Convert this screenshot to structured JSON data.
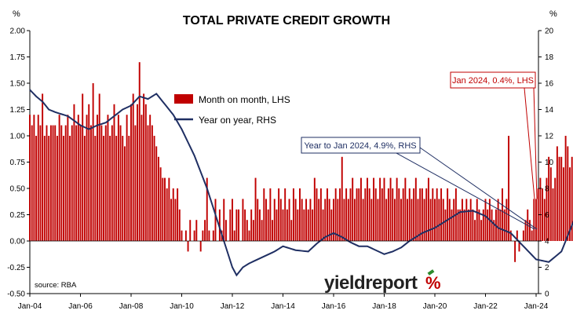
{
  "chart_data": {
    "type": "bar+line",
    "title": "TOTAL PRIVATE CREDIT GROWTH",
    "left_unit": "%",
    "right_unit": "%",
    "y_left": {
      "min": -0.5,
      "max": 2.0,
      "step": 0.25
    },
    "y_right": {
      "min": 0,
      "max": 20,
      "step": 2
    },
    "y_left_ticks": [
      "2.00",
      "1.75",
      "1.50",
      "1.25",
      "1.00",
      "0.75",
      "0.50",
      "0.25",
      "0.00",
      "-0.25",
      "-0.50"
    ],
    "y_right_ticks": [
      "20",
      "18",
      "16",
      "14",
      "12",
      "10",
      "8",
      "6",
      "4",
      "2",
      "0"
    ],
    "x_start": "2004-01",
    "x_end": "2024-01",
    "x_tick_labels": [
      "Jan-04",
      "Jan-06",
      "Jan-08",
      "Jan-10",
      "Jan-12",
      "Jan-14",
      "Jan-16",
      "Jan-18",
      "Jan-20",
      "Jan-22",
      "Jan-24"
    ],
    "grid": false,
    "legend": {
      "placement": "center-top",
      "entries": [
        {
          "label": "Month on month, LHS",
          "color": "#c00000",
          "kind": "bar"
        },
        {
          "label": "Year on year, RHS",
          "color": "#1f2f63",
          "kind": "line"
        }
      ]
    },
    "annotations": [
      {
        "text": "Jan 2024, 0.4%, LHS",
        "color": "#c00000",
        "points_to": {
          "date": "2024-01",
          "value": 0.4,
          "axis": "left"
        }
      },
      {
        "text": "Year to Jan 2024, 4.9%, RHS",
        "color": "#1f2f63",
        "points_to": {
          "date": "2024-01",
          "value": 4.9,
          "axis": "right"
        }
      }
    ],
    "source": "source: RBA",
    "logo": {
      "text": "yieldreport",
      "symbol": "%"
    },
    "series": [
      {
        "name": "Month on month, LHS",
        "kind": "bar",
        "axis": "left",
        "color": "#c00000",
        "values": [
          1.2,
          1.1,
          1.2,
          1.0,
          1.2,
          1.1,
          1.4,
          1.0,
          1.1,
          1.0,
          1.1,
          1.1,
          1.1,
          1.0,
          1.2,
          1.1,
          1.0,
          1.1,
          1.2,
          1.0,
          1.1,
          1.3,
          1.1,
          1.2,
          1.1,
          1.4,
          1.0,
          1.2,
          1.3,
          1.1,
          1.5,
          1.0,
          1.2,
          1.4,
          1.1,
          1.0,
          1.1,
          1.2,
          1.0,
          1.1,
          1.3,
          1.0,
          1.2,
          1.1,
          1.0,
          0.9,
          1.2,
          1.0,
          1.3,
          1.4,
          1.1,
          1.3,
          1.7,
          1.2,
          1.4,
          1.3,
          1.1,
          1.2,
          1.1,
          1.0,
          0.9,
          0.8,
          0.7,
          0.6,
          0.6,
          0.5,
          0.6,
          0.4,
          0.5,
          0.4,
          0.5,
          0.3,
          0.1,
          0.0,
          0.1,
          -0.1,
          0.2,
          0.0,
          0.1,
          0.2,
          0.0,
          -0.1,
          0.1,
          0.2,
          0.6,
          0.1,
          0.0,
          0.1,
          0.4,
          0.0,
          0.3,
          0.1,
          0.4,
          0.2,
          0.0,
          0.3,
          0.4,
          0.1,
          0.3,
          0.3,
          0.0,
          0.4,
          0.3,
          0.2,
          0.1,
          0.3,
          0.2,
          0.6,
          0.4,
          0.3,
          0.2,
          0.5,
          0.4,
          0.3,
          0.5,
          0.2,
          0.4,
          0.3,
          0.5,
          0.4,
          0.3,
          0.5,
          0.3,
          0.4,
          0.2,
          0.5,
          0.4,
          0.3,
          0.5,
          0.4,
          0.3,
          0.4,
          0.3,
          0.4,
          0.3,
          0.6,
          0.5,
          0.4,
          0.5,
          0.3,
          0.4,
          0.5,
          0.4,
          0.3,
          0.4,
          0.5,
          0.4,
          0.5,
          0.8,
          0.4,
          0.5,
          0.4,
          0.5,
          0.6,
          0.4,
          0.5,
          0.5,
          0.6,
          0.4,
          0.5,
          0.6,
          0.5,
          0.4,
          0.6,
          0.5,
          0.4,
          0.6,
          0.5,
          0.6,
          0.4,
          0.5,
          0.6,
          0.5,
          0.4,
          0.6,
          0.5,
          0.4,
          0.5,
          0.6,
          0.4,
          0.5,
          0.4,
          0.5,
          0.6,
          0.4,
          0.5,
          0.5,
          0.4,
          0.5,
          0.6,
          0.4,
          0.5,
          0.4,
          0.5,
          0.4,
          0.5,
          0.4,
          0.3,
          0.5,
          0.4,
          0.3,
          0.4,
          0.5,
          0.3,
          0.3,
          0.4,
          0.3,
          0.4,
          0.3,
          0.4,
          0.3,
          0.2,
          0.4,
          0.3,
          0.2,
          0.3,
          0.4,
          0.3,
          0.4,
          0.3,
          0.2,
          0.3,
          0.4,
          0.3,
          0.5,
          0.3,
          0.4,
          1.0,
          0.1,
          0.0,
          -0.2,
          0.1,
          -0.1,
          0.0,
          0.1,
          0.2,
          0.3,
          0.2,
          0.1,
          0.4,
          0.4,
          0.5,
          0.6,
          0.5,
          0.4,
          0.6,
          0.8,
          0.7,
          0.5,
          0.6,
          0.9,
          0.8,
          0.8,
          0.7,
          1.0,
          0.9,
          0.7,
          0.8,
          0.9,
          0.7,
          0.8,
          0.6,
          0.7,
          0.5,
          0.5,
          0.6,
          0.4,
          0.5,
          0.4,
          0.6,
          0.4,
          0.5,
          0.4,
          0.3,
          0.4,
          0.5,
          0.4,
          0.3,
          0.5,
          0.4,
          0.4,
          0.4,
          0.4,
          0.4,
          0.5,
          0.4,
          0.4,
          0.4,
          0.4
        ]
      },
      {
        "name": "Year on year, RHS",
        "kind": "line",
        "axis": "right",
        "color": "#1f2f63",
        "anchors": [
          [
            0,
            15.5
          ],
          [
            3,
            15.0
          ],
          [
            6,
            14.6
          ],
          [
            9,
            14.0
          ],
          [
            12,
            13.8
          ],
          [
            18,
            13.5
          ],
          [
            24,
            12.8
          ],
          [
            28,
            12.5
          ],
          [
            32,
            12.8
          ],
          [
            36,
            13.0
          ],
          [
            40,
            13.5
          ],
          [
            44,
            14.0
          ],
          [
            48,
            14.3
          ],
          [
            52,
            15.0
          ],
          [
            56,
            14.8
          ],
          [
            60,
            15.2
          ],
          [
            64,
            14.4
          ],
          [
            68,
            13.6
          ],
          [
            72,
            12.5
          ],
          [
            78,
            10.5
          ],
          [
            84,
            8.0
          ],
          [
            88,
            6.0
          ],
          [
            92,
            4.0
          ],
          [
            96,
            2.0
          ],
          [
            98,
            1.4
          ],
          [
            101,
            2.0
          ],
          [
            104,
            2.3
          ],
          [
            108,
            2.6
          ],
          [
            112,
            2.9
          ],
          [
            116,
            3.2
          ],
          [
            120,
            3.6
          ],
          [
            126,
            3.3
          ],
          [
            132,
            3.2
          ],
          [
            136,
            3.8
          ],
          [
            140,
            4.3
          ],
          [
            144,
            4.6
          ],
          [
            148,
            4.3
          ],
          [
            152,
            3.9
          ],
          [
            156,
            3.6
          ],
          [
            160,
            3.6
          ],
          [
            164,
            3.3
          ],
          [
            168,
            3.0
          ],
          [
            172,
            3.2
          ],
          [
            176,
            3.5
          ],
          [
            180,
            4.0
          ],
          [
            186,
            4.6
          ],
          [
            192,
            5.0
          ],
          [
            198,
            5.6
          ],
          [
            204,
            6.2
          ],
          [
            210,
            6.3
          ],
          [
            216,
            5.9
          ],
          [
            222,
            5.0
          ],
          [
            228,
            4.6
          ],
          [
            234,
            3.6
          ],
          [
            240,
            2.6
          ],
          [
            246,
            2.4
          ],
          [
            252,
            3.2
          ],
          [
            258,
            5.6
          ],
          [
            264,
            6.6
          ],
          [
            270,
            7.1
          ],
          [
            276,
            6.6
          ],
          [
            282,
            5.6
          ],
          [
            288,
            5.0
          ],
          [
            292,
            4.8
          ],
          [
            297,
            4.9
          ]
        ]
      }
    ]
  }
}
